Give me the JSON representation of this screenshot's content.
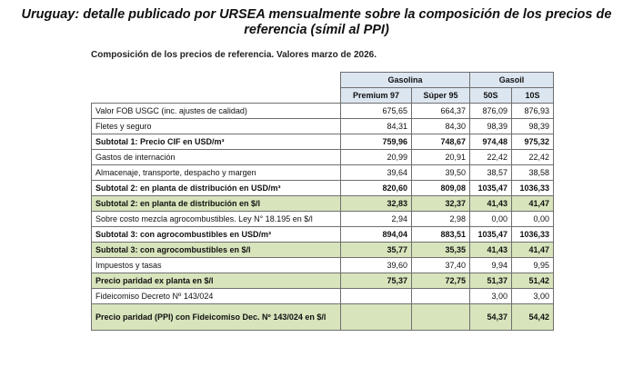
{
  "headline": {
    "line1": "Uruguay: detalle publicado por URSEA mensualmente sobre la composición de los precios de",
    "line2": "referencia (símil al PPI)"
  },
  "subtitle": "Composición de los precios de referencia. Valores marzo de 2026.",
  "groups": {
    "gasolina": "Gasolina",
    "gasoil": "Gasoil"
  },
  "products": [
    "Premium 97",
    "Súper 95",
    "50S",
    "10S"
  ],
  "rows": [
    {
      "label": "Valor FOB USGC (inc. ajustes de calidad)",
      "values": [
        "675,65",
        "664,37",
        "876,09",
        "876,93"
      ]
    },
    {
      "label": "Fletes y seguro",
      "values": [
        "84,31",
        "84,30",
        "98,39",
        "98,39"
      ]
    },
    {
      "label": "Subtotal 1: Precio CIF en USD/m³",
      "values": [
        "759,96",
        "748,67",
        "974,48",
        "975,32"
      ]
    },
    {
      "label": "Gastos de internación",
      "values": [
        "20,99",
        "20,91",
        "22,42",
        "22,42"
      ]
    },
    {
      "label": "Almacenaje, transporte, despacho y margen",
      "values": [
        "39,64",
        "39,50",
        "38,57",
        "38,58"
      ]
    },
    {
      "label": "Subtotal 2: en planta de distribución en USD/m³",
      "values": [
        "820,60",
        "809,08",
        "1035,47",
        "1036,33"
      ]
    },
    {
      "label": "Subtotal 2: en planta de distribución en $/l",
      "values": [
        "32,83",
        "32,37",
        "41,43",
        "41,47"
      ]
    },
    {
      "label": "Sobre costo mezcla agrocombustibles.  Ley N° 18.195 en $/l",
      "values": [
        "2,94",
        "2,98",
        "0,00",
        "0,00"
      ]
    },
    {
      "label": "Subtotal 3: con agrocombustibles en USD/m³",
      "values": [
        "894,04",
        "883,51",
        "1035,47",
        "1036,33"
      ]
    },
    {
      "label": "Subtotal 3: con agrocombustibles en $/l",
      "values": [
        "35,77",
        "35,35",
        "41,43",
        "41,47"
      ]
    },
    {
      "label": "Impuestos y tasas",
      "values": [
        "39,60",
        "37,40",
        "9,94",
        "9,95"
      ]
    },
    {
      "label": "Precio paridad ex planta en $/l",
      "values": [
        "75,37",
        "72,75",
        "51,37",
        "51,42"
      ]
    },
    {
      "label": "Fideicomiso Decreto Nº 143/024",
      "values": [
        "",
        "",
        "3,00",
        "3,00"
      ]
    },
    {
      "label": "Precio paridad (PPI) con Fideicomiso Dec. Nº 143/024 en $/l",
      "values": [
        "",
        "",
        "54,37",
        "54,42"
      ]
    }
  ],
  "colors": {
    "header_blue": "#dce6f1",
    "highlight_green": "#d8e4bc",
    "border": "#6f6f6f"
  }
}
